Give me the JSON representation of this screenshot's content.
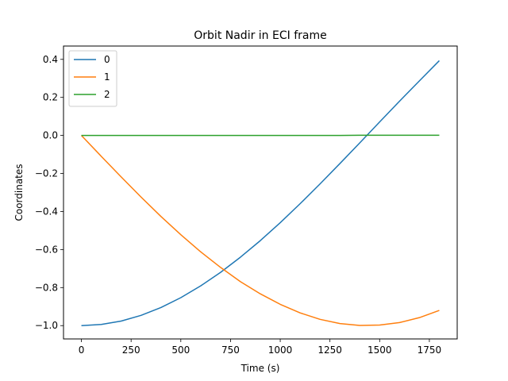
{
  "chart_data": {
    "type": "line",
    "title": "Orbit Nadir in ECI frame",
    "xlabel": "Time (s)",
    "ylabel": "Coordinates",
    "xlim": [
      -90,
      1890
    ],
    "ylim": [
      -1.07,
      0.47
    ],
    "xticks": [
      0,
      250,
      500,
      750,
      1000,
      1250,
      1500,
      1750
    ],
    "xtick_labels": [
      "0",
      "250",
      "500",
      "750",
      "1000",
      "1250",
      "1500",
      "1750"
    ],
    "yticks": [
      0.4,
      0.2,
      0.0,
      -0.2,
      -0.4,
      -0.6,
      -0.8,
      -1.0
    ],
    "ytick_labels": [
      "0.4",
      "0.2",
      "0.0",
      "−0.2",
      "−0.4",
      "−0.6",
      "−0.8",
      "−1.0"
    ],
    "grid": false,
    "legend_position": "top-left",
    "x": [
      0,
      100,
      200,
      300,
      400,
      500,
      600,
      700,
      800,
      900,
      1000,
      1100,
      1200,
      1300,
      1400,
      1500,
      1600,
      1700,
      1800
    ],
    "series": [
      {
        "name": "0",
        "color": "#1f77b4",
        "values": [
          -1.0,
          -0.994,
          -0.976,
          -0.946,
          -0.905,
          -0.853,
          -0.791,
          -0.72,
          -0.64,
          -0.553,
          -0.459,
          -0.359,
          -0.255,
          -0.148,
          -0.039,
          0.071,
          0.18,
          0.287,
          0.393
        ]
      },
      {
        "name": "1",
        "color": "#ff7f0e",
        "values": [
          0.0,
          -0.11,
          -0.218,
          -0.324,
          -0.426,
          -0.522,
          -0.612,
          -0.694,
          -0.769,
          -0.833,
          -0.888,
          -0.933,
          -0.967,
          -0.989,
          -0.999,
          -0.997,
          -0.984,
          -0.958,
          -0.92
        ]
      },
      {
        "name": "2",
        "color": "#2ca02c",
        "values": [
          0.0,
          0.0,
          0.0,
          0.0,
          0.0,
          0.0,
          0.0,
          0.0,
          0.0,
          0.0,
          0.0,
          0.0,
          0.0,
          0.0,
          0.001,
          0.001,
          0.001,
          0.001,
          0.001
        ]
      }
    ]
  }
}
